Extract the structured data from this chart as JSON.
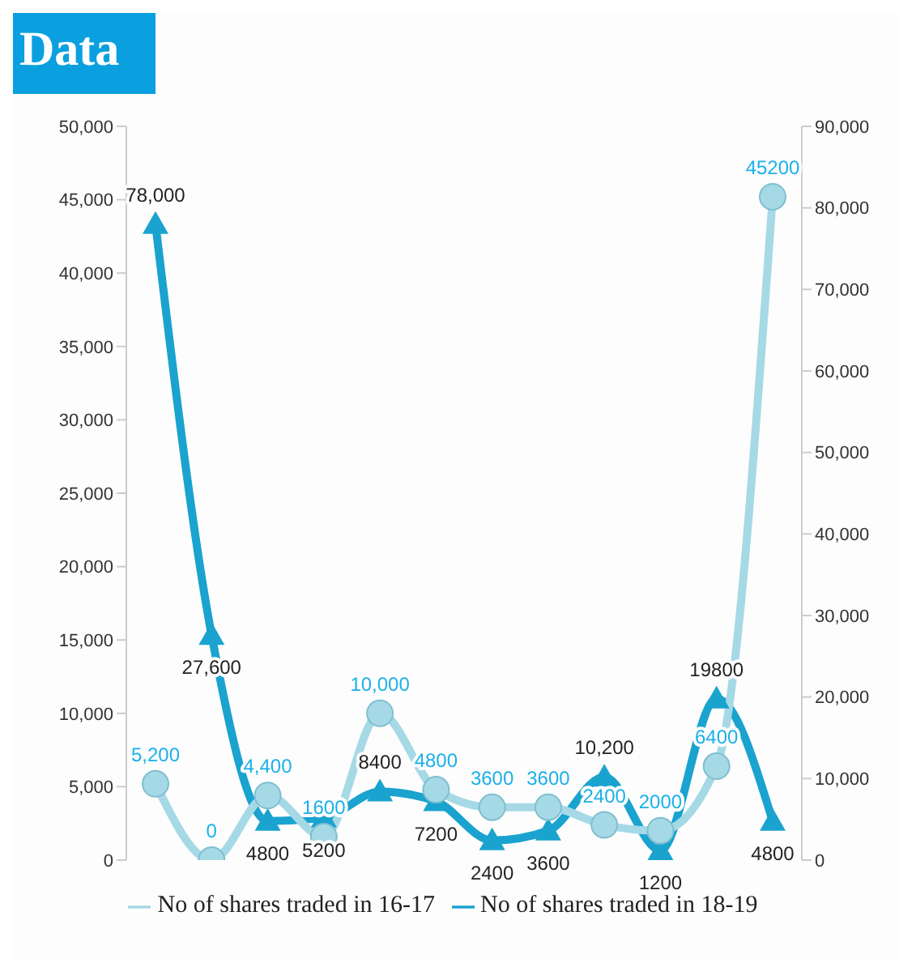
{
  "chart_data": {
    "type": "line",
    "title": "Data",
    "categories": [
      null,
      null,
      null,
      null,
      null,
      null,
      null,
      null,
      null,
      null,
      null,
      null
    ],
    "series": [
      {
        "name": "No of shares traded in 18-19",
        "color": "#1aa3cf",
        "axis": "y2",
        "marker": "triangle",
        "values": [
          78000,
          27600,
          4800,
          5200,
          8400,
          7200,
          2400,
          3600,
          10200,
          1200,
          19800,
          4800
        ],
        "value_labels": [
          "78,000",
          "27,600",
          "4800",
          "5200",
          "8400",
          "7200",
          "2400",
          "3600",
          "10,200",
          "1200",
          "19800",
          "4800"
        ]
      },
      {
        "name": "No of shares traded in 16-17",
        "color": "#a6d9e6",
        "marker": "circle",
        "values": [
          5200,
          0,
          4400,
          1600,
          10000,
          4800,
          3600,
          3600,
          2400,
          2000,
          6400,
          45200
        ],
        "value_labels": [
          "5,200",
          "0",
          "4,400",
          "1600",
          "10,000",
          "4800",
          "3600",
          "3600",
          "2400",
          "2000",
          "6400",
          "45200"
        ]
      }
    ],
    "ylim": [
      0,
      50000
    ],
    "yticks": [
      0,
      {
        "value": 5000,
        "label": "5,000"
      },
      {
        "value": 10000,
        "label": "10,000"
      },
      {
        "value": 15000,
        "label": "15,000"
      },
      {
        "value": 20000,
        "label": "20,000"
      },
      {
        "value": 25000,
        "label": "25,000"
      },
      {
        "value": 30000,
        "label": "30,000"
      },
      {
        "value": 35000,
        "label": "35,000"
      },
      {
        "value": 40000,
        "label": "40,000"
      },
      {
        "value": 45000,
        "label": "45,000"
      },
      {
        "value": 50000,
        "label": "50,000"
      }
    ],
    "y2lim": [
      0,
      90000
    ],
    "y2ticks": [
      0,
      {
        "value": 10000,
        "label": "10,000"
      },
      {
        "value": 20000,
        "label": "20,000"
      },
      {
        "value": 30000,
        "label": "30,000"
      },
      {
        "value": 40000,
        "label": "40,000"
      },
      {
        "value": 50000,
        "label": "50,000"
      },
      {
        "value": 60000,
        "label": "60,000"
      },
      {
        "value": 70000,
        "label": "70,000"
      },
      {
        "value": 80000,
        "label": "80,000"
      },
      {
        "value": 90000,
        "label": "90,000"
      }
    ],
    "grid": false,
    "legend": "bottom"
  }
}
